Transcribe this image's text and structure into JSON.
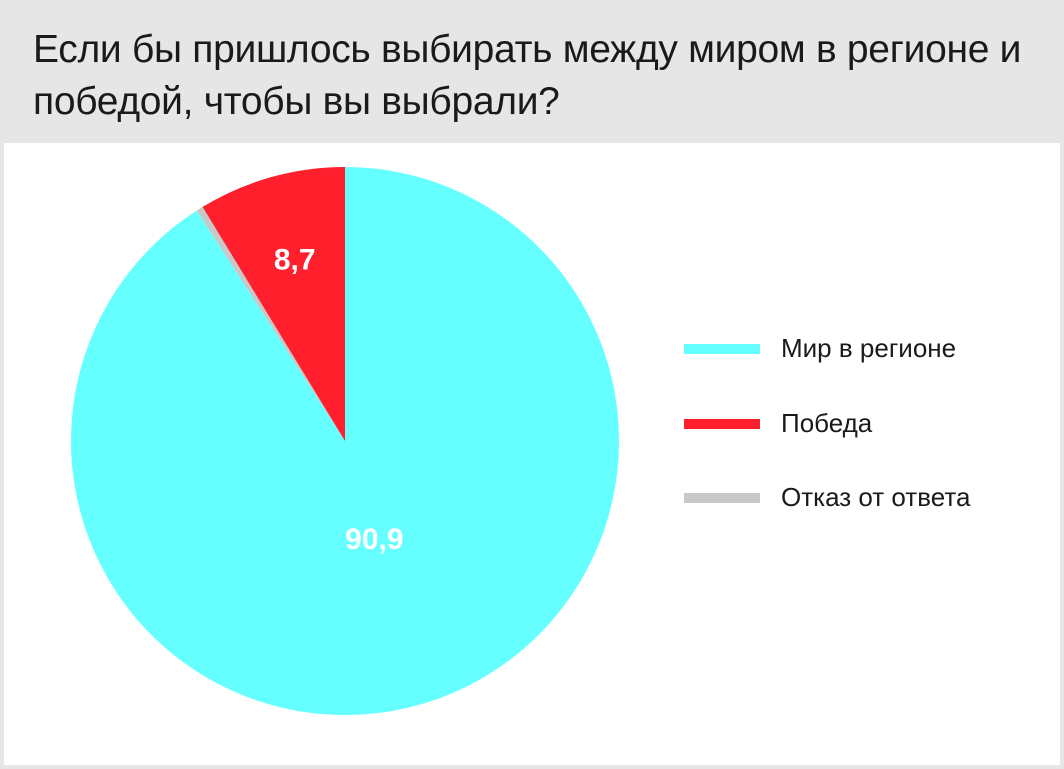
{
  "title": "Если бы пришлось выбирать между миром в регионе и победой, чтобы вы выбрали?",
  "chart_data": {
    "type": "pie",
    "title": "Если бы пришлось выбирать между миром в регионе и победой, чтобы вы выбрали?",
    "start": "12 o'clock",
    "direction": "clockwise",
    "slices": [
      {
        "label": "Мир в регионе",
        "value": 90.9,
        "value_label": "90,9",
        "color": "#66ffff"
      },
      {
        "label": "Отказ от ответа",
        "value": 0.4,
        "value_label": "",
        "color": "#c8c8c8"
      },
      {
        "label": "Победа",
        "value": 8.7,
        "value_label": "8,7",
        "color": "#ff1f2d"
      }
    ],
    "legend": {
      "placement": "right",
      "items": [
        {
          "label": "Мир в регионе",
          "color": "#66ffff"
        },
        {
          "label": "Победа",
          "color": "#ff1f2d"
        },
        {
          "label": "Отказ от ответа",
          "color": "#c8c8c8"
        }
      ]
    },
    "label_color": "#ffffff"
  }
}
